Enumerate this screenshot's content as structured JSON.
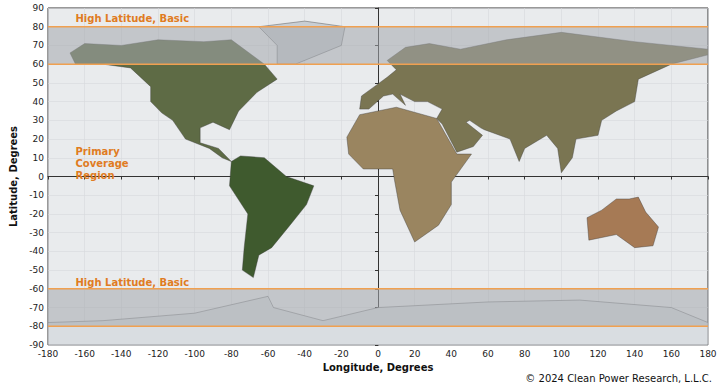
{
  "chart_data": {
    "type": "map",
    "xlabel": "Longitude, Degrees",
    "ylabel": "Latitude, Degrees",
    "xlim": [
      -180,
      180
    ],
    "xticks": [
      -180,
      -160,
      -140,
      -120,
      -100,
      -80,
      -60,
      -40,
      -20,
      0,
      20,
      40,
      60,
      80,
      100,
      120,
      140,
      160,
      180
    ],
    "ylim": [
      -90,
      90
    ],
    "yticks": [
      -90,
      -80,
      -70,
      -60,
      -50,
      -40,
      -30,
      -20,
      -10,
      0,
      10,
      20,
      30,
      40,
      50,
      60,
      70,
      80,
      90
    ],
    "grid": true,
    "regions": [
      {
        "ylim": [
          60,
          80
        ],
        "color": "#a4a8ad"
      },
      {
        "ylim": [
          -80,
          -60
        ],
        "color": "#a4a8ad"
      }
    ],
    "boundary_color": "#f0a050",
    "annotations": [
      {
        "text": "High Latitude, Basic",
        "x": -165,
        "y": 84.5,
        "color": "#e07b22"
      },
      {
        "text": [
          "Primary",
          "Coverage",
          "Region"
        ],
        "x": -165,
        "y": 7,
        "color": "#e07b22"
      },
      {
        "text": "High Latitude, Basic",
        "x": -165,
        "y": -56.5,
        "color": "#e07b22"
      }
    ],
    "landmasses": [
      {
        "color": "#5e6b45",
        "points": [
          [
            -168,
            66
          ],
          [
            -160,
            71
          ],
          [
            -140,
            70
          ],
          [
            -120,
            73
          ],
          [
            -95,
            72
          ],
          [
            -80,
            73
          ],
          [
            -62,
            60
          ],
          [
            -55,
            52
          ],
          [
            -66,
            45
          ],
          [
            -76,
            35
          ],
          [
            -81,
            25
          ],
          [
            -90,
            29
          ],
          [
            -97,
            26
          ],
          [
            -97,
            18
          ],
          [
            -87,
            15
          ],
          [
            -80,
            8
          ],
          [
            -85,
            10
          ],
          [
            -92,
            15
          ],
          [
            -105,
            20
          ],
          [
            -112,
            30
          ],
          [
            -118,
            34
          ],
          [
            -124,
            40
          ],
          [
            -124,
            48
          ],
          [
            -135,
            58
          ],
          [
            -150,
            60
          ],
          [
            -165,
            60
          ]
        ]
      },
      {
        "color": "#c9ced3",
        "points": [
          [
            -55,
            60
          ],
          [
            -45,
            60
          ],
          [
            -20,
            70
          ],
          [
            -18,
            80
          ],
          [
            -40,
            83
          ],
          [
            -65,
            80
          ],
          [
            -55,
            70
          ]
        ]
      },
      {
        "color": "#3f5a2e",
        "points": [
          [
            -80,
            8
          ],
          [
            -75,
            11
          ],
          [
            -62,
            10
          ],
          [
            -50,
            0
          ],
          [
            -35,
            -5
          ],
          [
            -39,
            -15
          ],
          [
            -48,
            -26
          ],
          [
            -58,
            -38
          ],
          [
            -65,
            -42
          ],
          [
            -68,
            -54
          ],
          [
            -74,
            -50
          ],
          [
            -73,
            -38
          ],
          [
            -71,
            -20
          ],
          [
            -81,
            -5
          ]
        ]
      },
      {
        "color": "#7a7552",
        "points": [
          [
            -10,
            36
          ],
          [
            -9,
            43
          ],
          [
            -2,
            48
          ],
          [
            5,
            53
          ],
          [
            10,
            57
          ],
          [
            5,
            62
          ],
          [
            15,
            69
          ],
          [
            28,
            71
          ],
          [
            45,
            68
          ],
          [
            70,
            73
          ],
          [
            100,
            77
          ],
          [
            140,
            72
          ],
          [
            180,
            68
          ],
          [
            180,
            65
          ],
          [
            160,
            60
          ],
          [
            142,
            52
          ],
          [
            140,
            40
          ],
          [
            130,
            35
          ],
          [
            122,
            30
          ],
          [
            120,
            22
          ],
          [
            108,
            20
          ],
          [
            106,
            10
          ],
          [
            100,
            2
          ],
          [
            98,
            15
          ],
          [
            92,
            22
          ],
          [
            80,
            15
          ],
          [
            77,
            8
          ],
          [
            72,
            20
          ],
          [
            58,
            25
          ],
          [
            56,
            26
          ],
          [
            50,
            30
          ],
          [
            48,
            29
          ],
          [
            57,
            22
          ],
          [
            52,
            16
          ],
          [
            43,
            13
          ],
          [
            35,
            28
          ],
          [
            32,
            31
          ],
          [
            35,
            36
          ],
          [
            27,
            40
          ],
          [
            20,
            40
          ],
          [
            12,
            44
          ],
          [
            15,
            38
          ],
          [
            8,
            44
          ],
          [
            3,
            43
          ],
          [
            -5,
            36
          ]
        ]
      },
      {
        "color": "#9a8560",
        "points": [
          [
            -17,
            21
          ],
          [
            -10,
            33
          ],
          [
            10,
            37
          ],
          [
            32,
            31
          ],
          [
            43,
            12
          ],
          [
            51,
            12
          ],
          [
            40,
            -3
          ],
          [
            40,
            -15
          ],
          [
            33,
            -26
          ],
          [
            20,
            -35
          ],
          [
            12,
            -18
          ],
          [
            9,
            -2
          ],
          [
            8,
            4
          ],
          [
            -8,
            4
          ],
          [
            -16,
            12
          ]
        ]
      },
      {
        "color": "#a67a55",
        "points": [
          [
            114,
            -22
          ],
          [
            122,
            -18
          ],
          [
            130,
            -12
          ],
          [
            137,
            -12
          ],
          [
            142,
            -11
          ],
          [
            146,
            -19
          ],
          [
            153,
            -27
          ],
          [
            150,
            -37
          ],
          [
            140,
            -38
          ],
          [
            130,
            -31
          ],
          [
            115,
            -34
          ]
        ]
      },
      {
        "color": "#d9dde1",
        "points": [
          [
            -180,
            -78
          ],
          [
            -150,
            -77
          ],
          [
            -100,
            -73
          ],
          [
            -60,
            -64
          ],
          [
            -57,
            -70
          ],
          [
            -30,
            -77
          ],
          [
            0,
            -70
          ],
          [
            60,
            -67
          ],
          [
            110,
            -66
          ],
          [
            160,
            -70
          ],
          [
            180,
            -78
          ],
          [
            180,
            -90
          ],
          [
            -180,
            -90
          ]
        ]
      }
    ],
    "footer": "© 2024 Clean Power Research, L.L.C."
  }
}
